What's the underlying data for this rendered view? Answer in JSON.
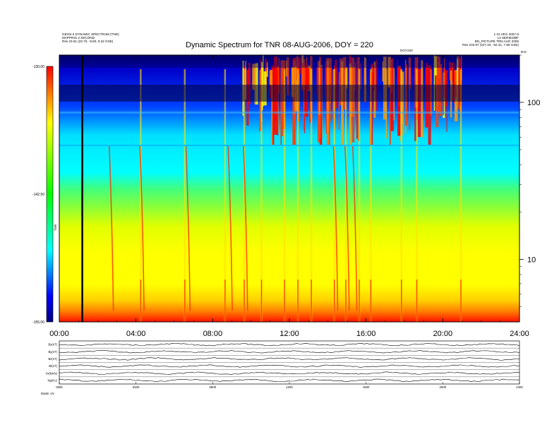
{
  "header": {
    "left_lines": [
      "GEOS-3 DYNAMIC SPECTRUM (TNR)",
      "MAPPING 2 SECOND",
      "Rse   23.61 (23.70, -9.80, 8.32 GSE)"
    ],
    "right_lines": [
      "1.10 VEG 2007-5",
      "L3 SERIES/BF",
      "BN_PICTURE TRN AUG 2006",
      "Rse   234.97 (227.34, -52.31, 7.69 GSE)"
    ],
    "doy_tag": "DOY220",
    "khz_tag": "kHz"
  },
  "chart_data": {
    "type": "heatmap",
    "title": "Dynamic Spectrum for TNR 08-AUG-2006, DOY = 220",
    "xlabel": "",
    "ylabel": "",
    "x_ticks": [
      "00:00",
      "04:00",
      "08:00",
      "12:00",
      "16:00",
      "20:00",
      "24:00"
    ],
    "xlim_hours": [
      0,
      24
    ],
    "y_scale": "log",
    "ylim_khz": [
      4,
      200
    ],
    "y_ticks": [
      "100",
      "10"
    ],
    "y_tick_values": [
      100,
      10
    ],
    "colorbar": {
      "label": "TNR",
      "ticks": [
        "-130.00",
        "-142.50",
        "-155.00"
      ],
      "tick_values": [
        -130.0,
        -142.5,
        -155.0
      ],
      "range": [
        -155.0,
        -130.0
      ],
      "colors": [
        "#000080",
        "#0000ff",
        "#00ffff",
        "#00ff00",
        "#ffff00",
        "#ff8000",
        "#ff0000"
      ]
    },
    "vertical_marker_hour": 1.2,
    "type_bursts_hours": [
      4.2,
      6.5,
      8.6,
      9.6,
      10.5,
      11.7,
      12.4,
      13.1,
      14.3,
      14.9,
      15.6,
      16.2,
      17.8,
      18.6,
      20.9
    ],
    "lower_panel": {
      "rows": [
        "Bx(nT)",
        "By(nT)",
        "Bz(nT)",
        "Bt(nT)",
        "Vx(km/s)",
        "Np(/cc)"
      ],
      "x_ticks": [
        "0000",
        "0400",
        "0800",
        "1200",
        "1600",
        "2000",
        "2400"
      ],
      "footer_left": "Mode:  s/c"
    }
  }
}
